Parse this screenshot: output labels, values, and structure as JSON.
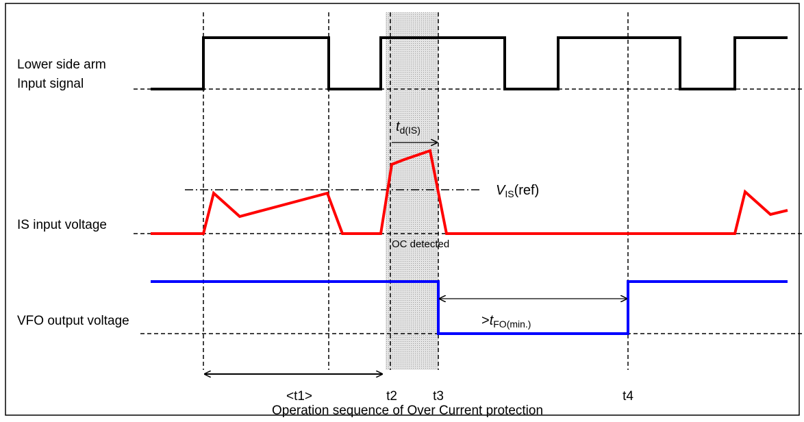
{
  "signals": {
    "input_line1": "Lower side arm",
    "input_line2": "Input signal",
    "is": "IS input voltage",
    "vfo": "VFO output voltage"
  },
  "annotations": {
    "td": {
      "main": "t",
      "sub": "d(IS)"
    },
    "vis": {
      "main": "V",
      "sub": "IS",
      "suffix": "(ref)"
    },
    "oc": "OC detected",
    "tfo": {
      "prefix": ">",
      "main": "t",
      "sub": "FO(min.)"
    },
    "t1": "<t1>",
    "t2": "t2",
    "t3": "t3",
    "t4": "t4"
  },
  "caption": "Operation sequence of Over Current protection"
}
